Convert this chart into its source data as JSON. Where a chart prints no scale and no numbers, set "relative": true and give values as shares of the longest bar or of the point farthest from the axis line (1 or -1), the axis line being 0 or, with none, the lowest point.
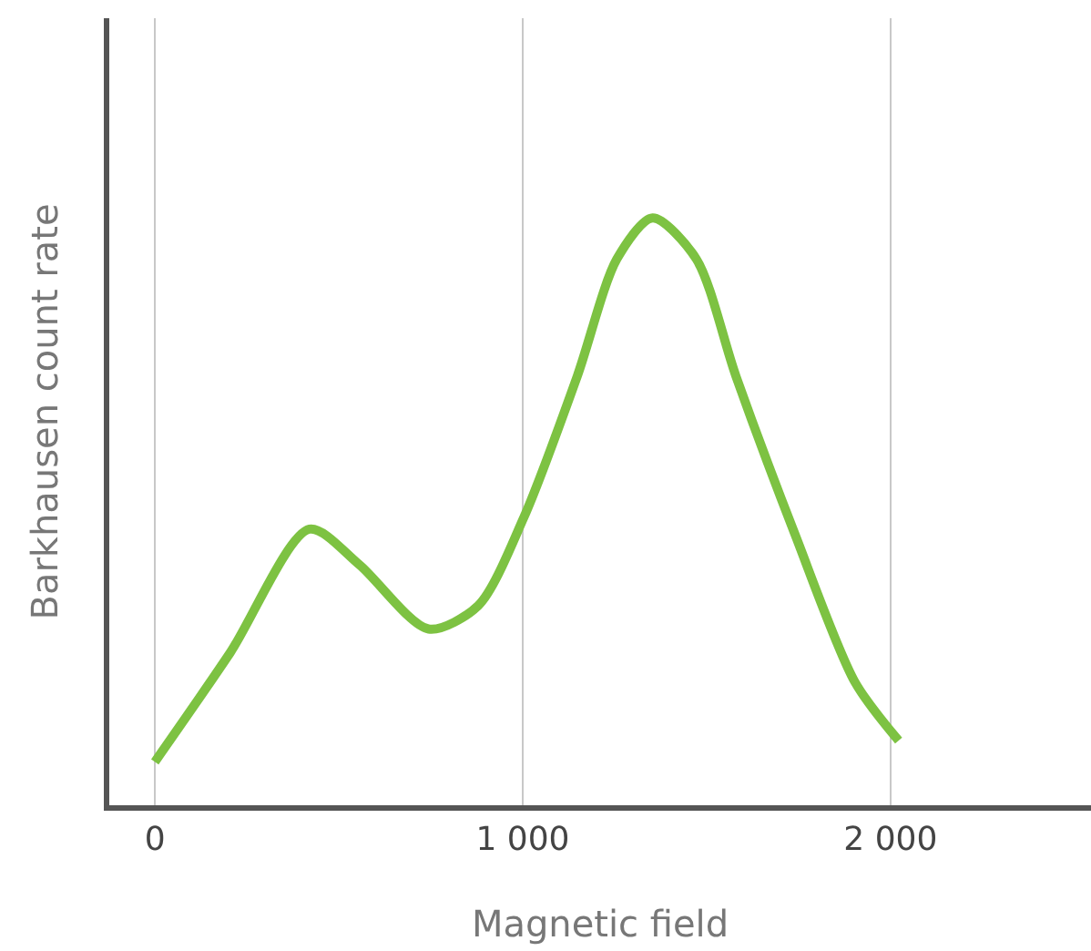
{
  "chart_data": {
    "type": "line",
    "relative": true,
    "xlabel": "Magnetic field",
    "ylabel": "Barkhausen count rate",
    "x": [
      0,
      205,
      420,
      555,
      744,
      879,
      1003,
      1148,
      1256,
      1353,
      1472,
      1580,
      1741,
      1903,
      2022
    ],
    "series": [
      {
        "color": "#7dc242",
        "values": [
          0.074,
          0.26,
          0.47,
          0.41,
          0.3,
          0.34,
          0.49,
          0.73,
          0.93,
          1.0,
          0.93,
          0.73,
          0.46,
          0.21,
          0.11
        ]
      }
    ],
    "xlim": [
      -124,
      2545
    ],
    "xticks": [
      0,
      {
        "value": 1000,
        "label": "1 000"
      },
      {
        "value": 2000,
        "label": "2 000"
      }
    ],
    "grid": "x",
    "tick_labels": "x",
    "marker": "none",
    "line_style": "solid"
  }
}
